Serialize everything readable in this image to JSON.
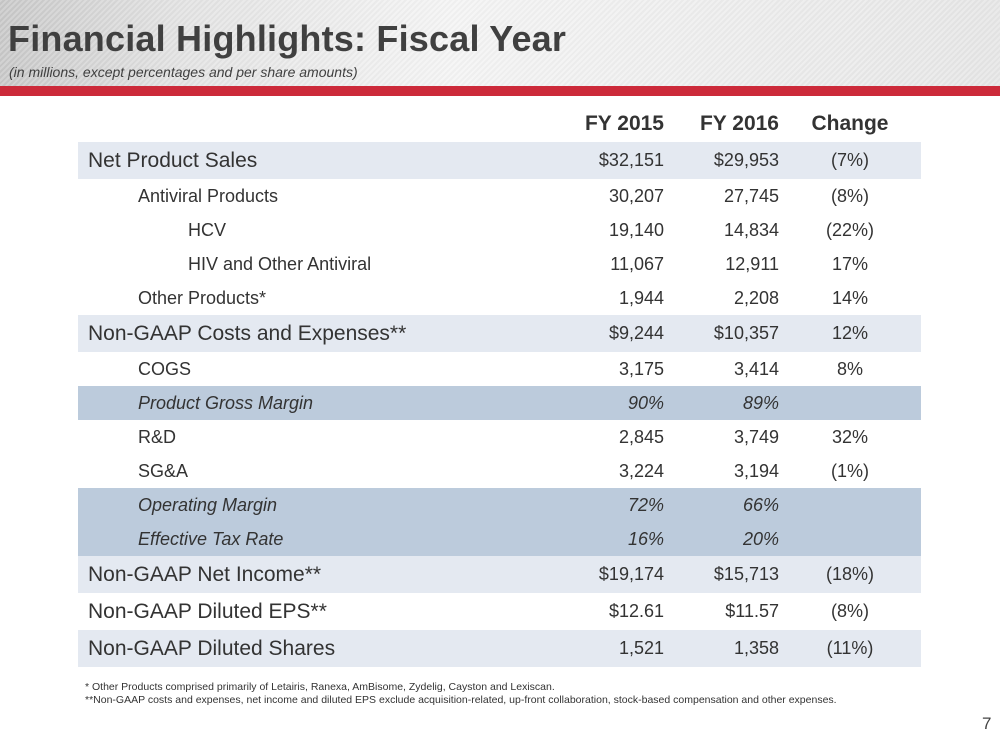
{
  "header": {
    "title": "Financial Highlights:  Fiscal Year",
    "subtitle": "(in millions, except percentages and per share amounts)"
  },
  "table": {
    "columns": [
      "",
      "FY 2015",
      "FY 2016",
      "Change"
    ],
    "rows": [
      {
        "label": "Net Product Sales",
        "fy2015": "$32,151",
        "fy2016": "$29,953",
        "change": "(7%)"
      },
      {
        "label": "Antiviral Products",
        "fy2015": "30,207",
        "fy2016": "27,745",
        "change": "(8%)"
      },
      {
        "label": "HCV",
        "fy2015": "19,140",
        "fy2016": "14,834",
        "change": "(22%)"
      },
      {
        "label": "HIV and Other Antiviral",
        "fy2015": "11,067",
        "fy2016": "12,911",
        "change": "17%"
      },
      {
        "label": "Other Products*",
        "fy2015": "1,944",
        "fy2016": "2,208",
        "change": "14%"
      },
      {
        "label": "Non-GAAP Costs and Expenses**",
        "fy2015": "$9,244",
        "fy2016": "$10,357",
        "change": "12%"
      },
      {
        "label": "COGS",
        "fy2015": "3,175",
        "fy2016": "3,414",
        "change": "8%"
      },
      {
        "label": "Product Gross Margin",
        "fy2015": "90%",
        "fy2016": "89%",
        "change": ""
      },
      {
        "label": "R&D",
        "fy2015": "2,845",
        "fy2016": "3,749",
        "change": "32%"
      },
      {
        "label": "SG&A",
        "fy2015": "3,224",
        "fy2016": "3,194",
        "change": "(1%)"
      },
      {
        "label": "Operating Margin",
        "fy2015": "72%",
        "fy2016": "66%",
        "change": ""
      },
      {
        "label": "Effective Tax Rate",
        "fy2015": "16%",
        "fy2016": "20%",
        "change": ""
      },
      {
        "label": "Non-GAAP Net Income**",
        "fy2015": "$19,174",
        "fy2016": "$15,713",
        "change": "(18%)"
      },
      {
        "label": "Non-GAAP Diluted EPS**",
        "fy2015": "$12.61",
        "fy2016": "$11.57",
        "change": "(8%)"
      },
      {
        "label": "Non-GAAP Diluted Shares",
        "fy2015": "1,521",
        "fy2016": "1,358",
        "change": "(11%)"
      }
    ]
  },
  "footnotes": [
    "* Other Products comprised primarily of Letairis, Ranexa, AmBisome, Zydelig, Cayston and Lexiscan.",
    "**Non-GAAP costs and expenses, net income and diluted EPS exclude acquisition-related, up-front collaboration, stock-based compensation and other expenses."
  ],
  "page_number": "7",
  "colors": {
    "accent_red": "#cc2a3a",
    "row_highlight": "#e4e9f1",
    "row_blue": "#bccbdc"
  }
}
